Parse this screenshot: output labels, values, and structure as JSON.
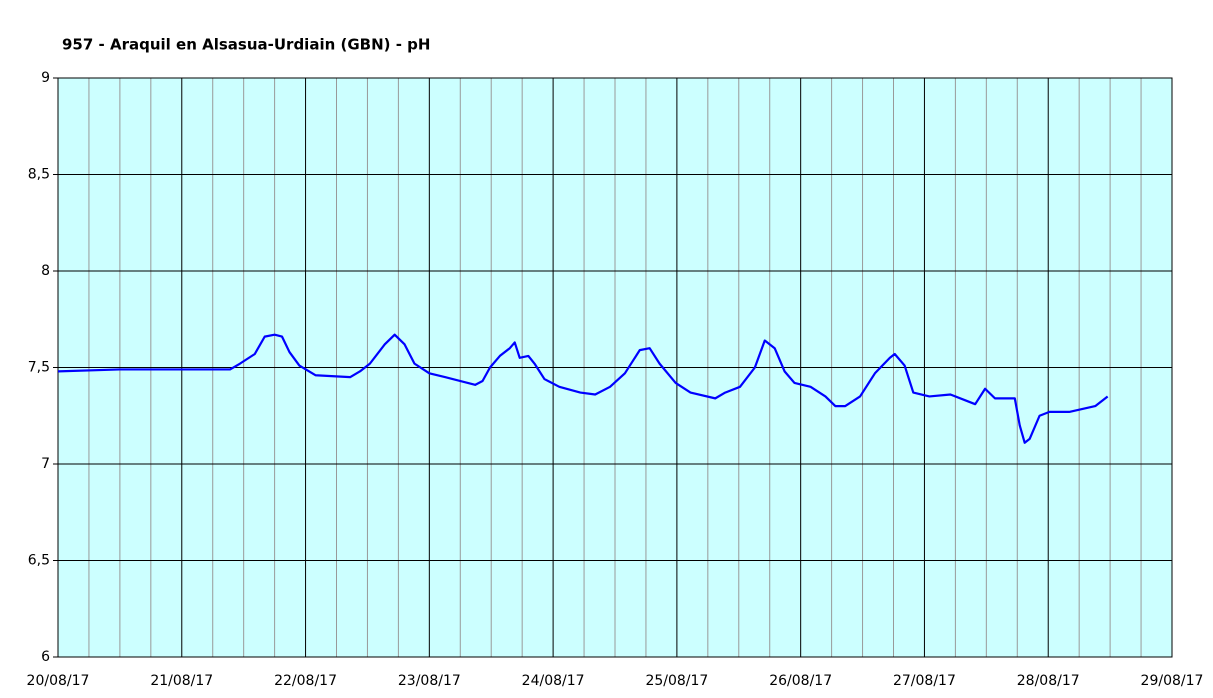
{
  "chart_data": {
    "type": "line",
    "title": "957 - Araquil en Alsasua-Urdiain (GBN) - pH",
    "x": [
      0,
      0.5,
      1.0,
      1.39,
      1.47,
      1.59,
      1.67,
      1.75,
      1.81,
      1.87,
      1.95,
      2.08,
      2.36,
      2.44,
      2.52,
      2.64,
      2.72,
      2.8,
      2.88,
      3.0,
      3.13,
      3.37,
      3.43,
      3.49,
      3.57,
      3.65,
      3.69,
      3.73,
      3.8,
      3.85,
      3.93,
      4.05,
      4.22,
      4.34,
      4.46,
      4.58,
      4.7,
      4.78,
      4.86,
      4.99,
      5.11,
      5.31,
      5.39,
      5.51,
      5.63,
      5.71,
      5.79,
      5.87,
      5.95,
      6.08,
      6.2,
      6.28,
      6.36,
      6.48,
      6.6,
      6.72,
      6.76,
      6.84,
      6.91,
      7.04,
      7.21,
      7.33,
      7.41,
      7.49,
      7.57,
      7.73,
      7.77,
      7.81,
      7.85,
      7.93,
      8.01,
      8.17,
      8.38,
      8.48
    ],
    "series": [
      {
        "name": "pH",
        "color": "#0000ff",
        "values": [
          7.48,
          7.49,
          7.49,
          7.49,
          7.52,
          7.57,
          7.66,
          7.67,
          7.66,
          7.58,
          7.51,
          7.46,
          7.45,
          7.48,
          7.52,
          7.62,
          7.67,
          7.62,
          7.52,
          7.47,
          7.45,
          7.41,
          7.43,
          7.5,
          7.56,
          7.6,
          7.63,
          7.55,
          7.56,
          7.52,
          7.44,
          7.4,
          7.37,
          7.36,
          7.4,
          7.47,
          7.59,
          7.6,
          7.52,
          7.42,
          7.37,
          7.34,
          7.37,
          7.4,
          7.5,
          7.64,
          7.6,
          7.48,
          7.42,
          7.4,
          7.35,
          7.3,
          7.3,
          7.35,
          7.47,
          7.55,
          7.57,
          7.51,
          7.37,
          7.35,
          7.36,
          7.33,
          7.31,
          7.39,
          7.34,
          7.34,
          7.2,
          7.11,
          7.13,
          7.25,
          7.27,
          7.27,
          7.3,
          7.35
        ]
      }
    ],
    "xlim": [
      0,
      9
    ],
    "xticks": [
      {
        "value": 0,
        "label": "20/08/17"
      },
      {
        "value": 1,
        "label": "21/08/17"
      },
      {
        "value": 2,
        "label": "22/08/17"
      },
      {
        "value": 3,
        "label": "23/08/17"
      },
      {
        "value": 4,
        "label": "24/08/17"
      },
      {
        "value": 5,
        "label": "25/08/17"
      },
      {
        "value": 6,
        "label": "26/08/17"
      },
      {
        "value": 7,
        "label": "27/08/17"
      },
      {
        "value": 8,
        "label": "28/08/17"
      },
      {
        "value": 9,
        "label": "29/08/17"
      }
    ],
    "ylim": [
      6,
      9
    ],
    "yticks": [
      6,
      {
        "value": 6.5,
        "label": "6,5"
      },
      7,
      {
        "value": 7.5,
        "label": "7,5"
      },
      8,
      {
        "value": 8.5,
        "label": "8,5"
      },
      9
    ],
    "grid": true,
    "plot_background": "#ccffff"
  }
}
